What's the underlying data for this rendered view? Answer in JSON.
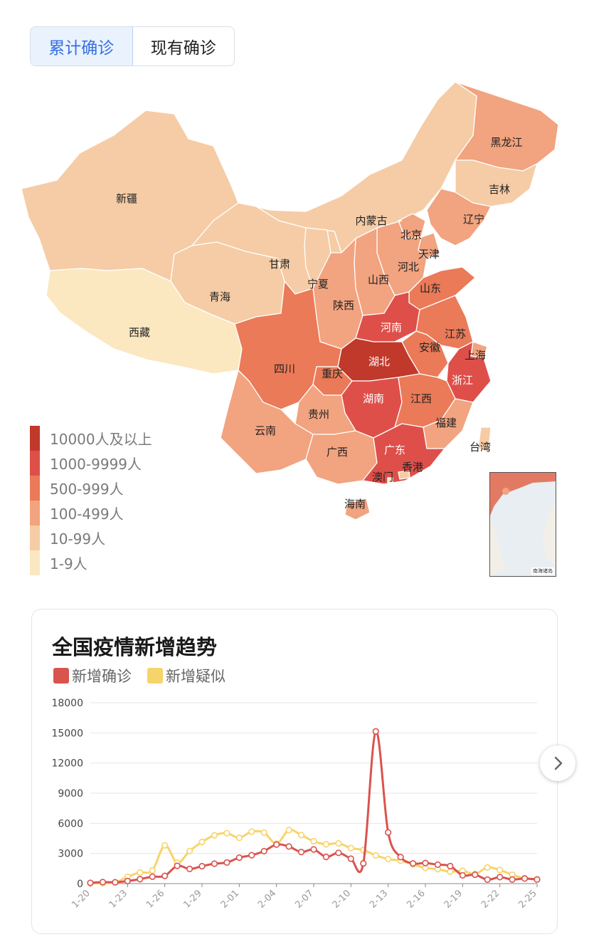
{
  "tabs": [
    {
      "label": "累计确诊",
      "active": true
    },
    {
      "label": "现有确诊",
      "active": false
    }
  ],
  "map": {
    "legend": [
      {
        "label": "10000人及以上",
        "color": "#c0392b"
      },
      {
        "label": "1000-9999人",
        "color": "#df4f4a"
      },
      {
        "label": "500-999人",
        "color": "#ea7a58"
      },
      {
        "label": "100-499人",
        "color": "#f2a37f"
      },
      {
        "label": "10-99人",
        "color": "#f5cca6"
      },
      {
        "label": "1-9人",
        "color": "#fbe8c0"
      }
    ],
    "provinces": [
      {
        "name": "黑龙江",
        "bucket": "100-499人"
      },
      {
        "name": "吉林",
        "bucket": "10-99人"
      },
      {
        "name": "辽宁",
        "bucket": "100-499人"
      },
      {
        "name": "新疆",
        "bucket": "10-99人"
      },
      {
        "name": "内蒙古",
        "bucket": "10-99人"
      },
      {
        "name": "北京",
        "bucket": "100-499人"
      },
      {
        "name": "天津",
        "bucket": "100-499人"
      },
      {
        "name": "河北",
        "bucket": "100-499人"
      },
      {
        "name": "甘肃",
        "bucket": "10-99人"
      },
      {
        "name": "宁夏",
        "bucket": "10-99人"
      },
      {
        "name": "山西",
        "bucket": "100-499人"
      },
      {
        "name": "山东",
        "bucket": "500-999人"
      },
      {
        "name": "青海",
        "bucket": "10-99人"
      },
      {
        "name": "陕西",
        "bucket": "100-499人"
      },
      {
        "name": "西藏",
        "bucket": "1-9人"
      },
      {
        "name": "河南",
        "bucket": "1000-9999人"
      },
      {
        "name": "江苏",
        "bucket": "500-999人"
      },
      {
        "name": "安徽",
        "bucket": "500-999人"
      },
      {
        "name": "上海",
        "bucket": "100-499人"
      },
      {
        "name": "四川",
        "bucket": "500-999人"
      },
      {
        "name": "重庆",
        "bucket": "500-999人"
      },
      {
        "name": "湖北",
        "bucket": "10000人及以上"
      },
      {
        "name": "浙江",
        "bucket": "1000-9999人"
      },
      {
        "name": "湖南",
        "bucket": "1000-9999人"
      },
      {
        "name": "江西",
        "bucket": "500-999人"
      },
      {
        "name": "贵州",
        "bucket": "100-499人"
      },
      {
        "name": "云南",
        "bucket": "100-499人"
      },
      {
        "name": "福建",
        "bucket": "100-499人"
      },
      {
        "name": "广西",
        "bucket": "100-499人"
      },
      {
        "name": "广东",
        "bucket": "1000-9999人"
      },
      {
        "name": "台湾",
        "bucket": "10-99人"
      },
      {
        "name": "香港",
        "bucket": "10-99人"
      },
      {
        "name": "澳门",
        "bucket": "1-9人"
      },
      {
        "name": "海南",
        "bucket": "100-499人"
      }
    ],
    "inset_caption": "南海诸岛"
  },
  "chart_card": {
    "title": "全国疫情新增趋势"
  },
  "chart_data": {
    "type": "line",
    "title": "全国疫情新增趋势",
    "xlabel": "",
    "ylabel": "",
    "ylim": [
      0,
      18000
    ],
    "yticks": [
      0,
      3000,
      6000,
      9000,
      12000,
      15000,
      18000
    ],
    "grid": true,
    "legend_position": "top-left",
    "x_tick_labels": [
      "1-20",
      "1-23",
      "1-26",
      "1-29",
      "2-01",
      "2-04",
      "2-07",
      "2-10",
      "2-13",
      "2-16",
      "2-19",
      "2-22",
      "2-25"
    ],
    "x": [
      "1-20",
      "1-21",
      "1-22",
      "1-23",
      "1-24",
      "1-25",
      "1-26",
      "1-27",
      "1-28",
      "1-29",
      "1-30",
      "1-31",
      "2-01",
      "2-02",
      "2-03",
      "2-04",
      "2-05",
      "2-06",
      "2-07",
      "2-08",
      "2-09",
      "2-10",
      "2-11",
      "2-12",
      "2-13",
      "2-14",
      "2-15",
      "2-16",
      "2-17",
      "2-18",
      "2-19",
      "2-20",
      "2-21",
      "2-22",
      "2-23",
      "2-24",
      "2-25"
    ],
    "series": [
      {
        "name": "新增确诊",
        "color": "#d9534f",
        "values": [
          77,
          149,
          131,
          259,
          444,
          688,
          769,
          1771,
          1459,
          1737,
          1982,
          2102,
          2590,
          2829,
          3235,
          3887,
          3694,
          3143,
          3399,
          2656,
          3062,
          2478,
          2015,
          15152,
          5090,
          2641,
          2009,
          2048,
          1886,
          1749,
          820,
          889,
          397,
          648,
          409,
          508,
          406
        ]
      },
      {
        "name": "新增疑似",
        "color": "#f7d46a",
        "values": [
          27,
          45,
          120,
          680,
          1118,
          1309,
          3806,
          2077,
          3248,
          4148,
          4812,
          5019,
          4562,
          5173,
          5072,
          3971,
          5328,
          4833,
          4214,
          3916,
          4008,
          3536,
          3342,
          2807,
          2450,
          2277,
          1918,
          1563,
          1432,
          1185,
          1277,
          956,
          1614,
          1361,
          882,
          530,
          439
        ]
      }
    ]
  },
  "controls": {
    "next_icon": "chevron-right-icon"
  }
}
